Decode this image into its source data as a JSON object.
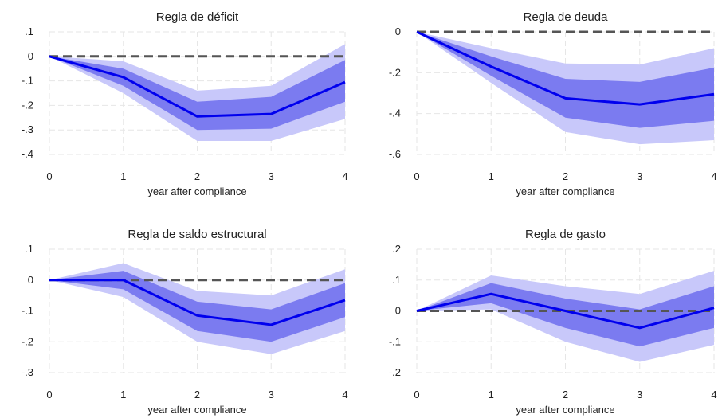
{
  "chart_data": [
    {
      "type": "line",
      "title": "Regla de déficit",
      "xlabel": "year after compliance",
      "ylabel": "",
      "x": [
        0,
        1,
        2,
        3,
        4
      ],
      "xticks": [
        "0",
        "1",
        "2",
        "3",
        "4"
      ],
      "ylim": [
        -0.4,
        0.1
      ],
      "yticks": [
        ".1",
        "0",
        "-.1",
        "-.2",
        "-.3",
        "-.4"
      ],
      "ytick_values": [
        0.1,
        0,
        -0.1,
        -0.2,
        -0.3,
        -0.4
      ],
      "grid": true,
      "series": [
        {
          "values": [
            0,
            -0.085,
            -0.245,
            -0.235,
            -0.105
          ],
          "band_inner_upper": [
            0,
            -0.05,
            -0.185,
            -0.165,
            -0.015
          ],
          "band_inner_lower": [
            0,
            -0.12,
            -0.3,
            -0.295,
            -0.185
          ],
          "band_outer_upper": [
            0,
            -0.02,
            -0.14,
            -0.12,
            0.05
          ],
          "band_outer_lower": [
            0,
            -0.15,
            -0.345,
            -0.345,
            -0.255
          ]
        }
      ],
      "reference_line": 0
    },
    {
      "type": "line",
      "title": "Regla de deuda",
      "xlabel": "year after compliance",
      "ylabel": "",
      "x": [
        0,
        1,
        2,
        3,
        4
      ],
      "xticks": [
        "0",
        "1",
        "2",
        "3",
        "4"
      ],
      "ylim": [
        -0.6,
        0
      ],
      "yticks": [
        "0",
        "-.2",
        "-.4",
        "-.6"
      ],
      "ytick_values": [
        0,
        -0.2,
        -0.4,
        -0.6
      ],
      "grid": true,
      "series": [
        {
          "values": [
            0,
            -0.17,
            -0.325,
            -0.355,
            -0.305
          ],
          "band_inner_upper": [
            0,
            -0.12,
            -0.23,
            -0.245,
            -0.175
          ],
          "band_inner_lower": [
            0,
            -0.215,
            -0.42,
            -0.47,
            -0.435
          ],
          "band_outer_upper": [
            0,
            -0.08,
            -0.155,
            -0.16,
            -0.08
          ],
          "band_outer_lower": [
            0,
            -0.25,
            -0.49,
            -0.55,
            -0.53
          ]
        }
      ],
      "reference_line": 0
    },
    {
      "type": "line",
      "title": "Regla de saldo estructural",
      "xlabel": "year after compliance",
      "ylabel": "",
      "x": [
        0,
        1,
        2,
        3,
        4
      ],
      "xticks": [
        "0",
        "1",
        "2",
        "3",
        "4"
      ],
      "ylim": [
        -0.3,
        0.1
      ],
      "yticks": [
        ".1",
        "0",
        "-.1",
        "-.2",
        "-.3"
      ],
      "ytick_values": [
        0.1,
        0,
        -0.1,
        -0.2,
        -0.3
      ],
      "grid": true,
      "series": [
        {
          "values": [
            0,
            0,
            -0.115,
            -0.145,
            -0.065
          ],
          "band_inner_upper": [
            0,
            0.03,
            -0.07,
            -0.095,
            -0.01
          ],
          "band_inner_lower": [
            0,
            -0.03,
            -0.165,
            -0.2,
            -0.12
          ],
          "band_outer_upper": [
            0,
            0.055,
            -0.035,
            -0.05,
            0.035
          ],
          "band_outer_lower": [
            0,
            -0.055,
            -0.2,
            -0.24,
            -0.165
          ]
        }
      ],
      "reference_line": 0
    },
    {
      "type": "line",
      "title": "Regla de gasto",
      "xlabel": "year after compliance",
      "ylabel": "",
      "x": [
        0,
        1,
        2,
        3,
        4
      ],
      "xticks": [
        "0",
        "1",
        "2",
        "3",
        "4"
      ],
      "ylim": [
        -0.2,
        0.2
      ],
      "yticks": [
        ".2",
        ".1",
        "0",
        "-.1",
        "-.2"
      ],
      "ytick_values": [
        0.2,
        0.1,
        0,
        -0.1,
        -0.2
      ],
      "grid": true,
      "series": [
        {
          "values": [
            0,
            0.055,
            0,
            -0.055,
            0.01
          ],
          "band_inner_upper": [
            0,
            0.09,
            0.04,
            0.005,
            0.08
          ],
          "band_inner_lower": [
            0,
            0.025,
            -0.055,
            -0.115,
            -0.055
          ],
          "band_outer_upper": [
            0,
            0.115,
            0.08,
            0.055,
            0.13
          ],
          "band_outer_lower": [
            0,
            0.005,
            -0.1,
            -0.165,
            -0.11
          ]
        }
      ],
      "reference_line": 0
    }
  ],
  "colors": {
    "line": "#0000ee",
    "band_inner": "#7b7bf0",
    "band_outer": "#c8c8fa",
    "reference": "#555555",
    "grid": "#e6e6e6"
  }
}
